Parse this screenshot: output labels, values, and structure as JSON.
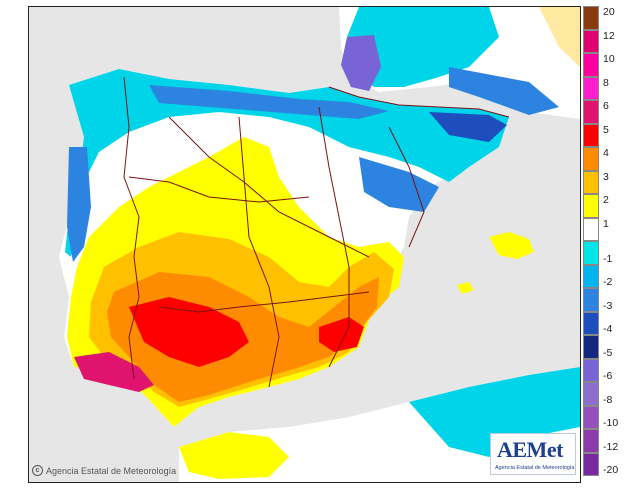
{
  "map": {
    "credit": "Agencia Estatal de Meteorología",
    "credit_icon": "copyright-icon",
    "logo_text": "AEMet",
    "logo_subtitle": "Agencia Estatal de Meteorología"
  },
  "legend": {
    "upper_labels": [
      "20",
      "12",
      "10",
      "8",
      "6",
      "5",
      "4",
      "3",
      "2",
      "1"
    ],
    "lower_labels": [
      "-1",
      "-2",
      "-3",
      "-4",
      "-5",
      "-6",
      "-8",
      "-10",
      "-12",
      "-20"
    ],
    "colors": [
      "#8b3a0e",
      "#e00070",
      "#ff00a0",
      "#ff1ecb",
      "#e0146e",
      "#ff0000",
      "#ff8c00",
      "#ffc000",
      "#ffff00",
      "#ffffff",
      "#00e5e5",
      "#00b4f0",
      "#2d84e0",
      "#1e4ebe",
      "#142882",
      "#7864d4",
      "#8c6ecd",
      "#9650be",
      "#8c3caa",
      "#7828a0"
    ]
  },
  "colors": {
    "sea": "#e6e6e6",
    "land_neutral": "#ffffff",
    "border_lines": "#7a1414"
  }
}
